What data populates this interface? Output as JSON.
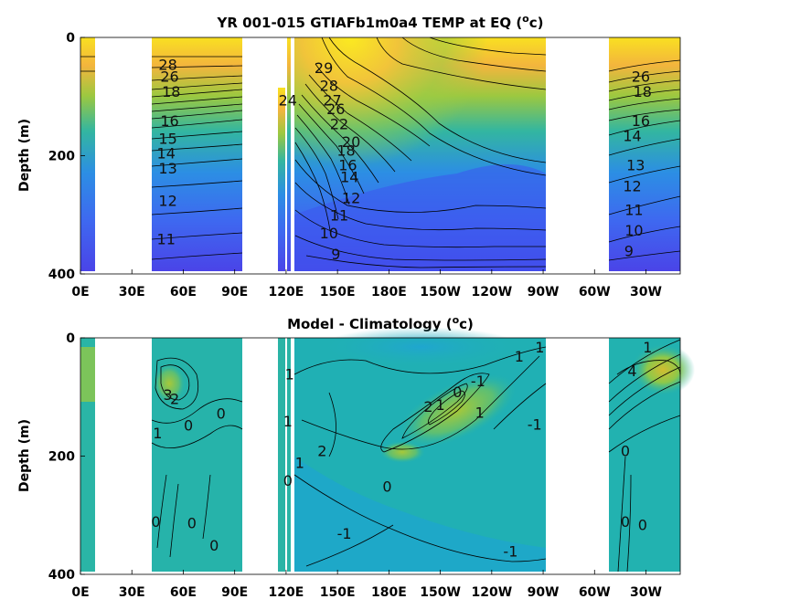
{
  "chart_data": [
    {
      "type": "heatmap",
      "title": "YR 001-015 GTIAFb1m0a4 TEMP at EQ (°c)",
      "ylabel": "Depth (m)",
      "xticks": [
        "0E",
        "30E",
        "60E",
        "90E",
        "120E",
        "150E",
        "180E",
        "150W",
        "120W",
        "90W",
        "60W",
        "30W"
      ],
      "yticks": [
        "0",
        "200",
        "400"
      ],
      "ylim": [
        0,
        400
      ],
      "contour_labels": [
        {
          "text": "28",
          "lon": 51,
          "depth": 55
        },
        {
          "text": "26",
          "lon": 52,
          "depth": 75
        },
        {
          "text": "18",
          "lon": 53,
          "depth": 100
        },
        {
          "text": "16",
          "lon": 52,
          "depth": 150
        },
        {
          "text": "15",
          "lon": 51,
          "depth": 180
        },
        {
          "text": "14",
          "lon": 50,
          "depth": 205
        },
        {
          "text": "13",
          "lon": 51,
          "depth": 230
        },
        {
          "text": "12",
          "lon": 51,
          "depth": 285
        },
        {
          "text": "11",
          "lon": 50,
          "depth": 350
        },
        {
          "text": "24",
          "lon": 121,
          "depth": 115
        },
        {
          "text": "29",
          "lon": 142,
          "depth": 60
        },
        {
          "text": "28",
          "lon": 145,
          "depth": 90
        },
        {
          "text": "27",
          "lon": 147,
          "depth": 115
        },
        {
          "text": "26",
          "lon": 149,
          "depth": 130
        },
        {
          "text": "22",
          "lon": 151,
          "depth": 155
        },
        {
          "text": "20",
          "lon": 158,
          "depth": 185
        },
        {
          "text": "18",
          "lon": 155,
          "depth": 200
        },
        {
          "text": "16",
          "lon": 156,
          "depth": 225
        },
        {
          "text": "14",
          "lon": 157,
          "depth": 245
        },
        {
          "text": "12",
          "lon": 158,
          "depth": 280
        },
        {
          "text": "11",
          "lon": 151,
          "depth": 310
        },
        {
          "text": "10",
          "lon": 145,
          "depth": 340
        },
        {
          "text": "9",
          "lon": 149,
          "depth": 375
        },
        {
          "text": "26",
          "lon": 327,
          "depth": 75
        },
        {
          "text": "18",
          "lon": 328,
          "depth": 100
        },
        {
          "text": "16",
          "lon": 327,
          "depth": 150
        },
        {
          "text": "14",
          "lon": 322,
          "depth": 175
        },
        {
          "text": "13",
          "lon": 324,
          "depth": 225
        },
        {
          "text": "12",
          "lon": 322,
          "depth": 260
        },
        {
          "text": "11",
          "lon": 323,
          "depth": 300
        },
        {
          "text": "10",
          "lon": 323,
          "depth": 335
        },
        {
          "text": "9",
          "lon": 320,
          "depth": 370
        }
      ]
    },
    {
      "type": "heatmap",
      "title": "Model - Climatology (°c)",
      "ylabel": "Depth (m)",
      "xticks": [
        "0E",
        "30E",
        "60E",
        "90E",
        "120E",
        "150E",
        "180E",
        "150W",
        "120W",
        "90W",
        "60W",
        "30W"
      ],
      "yticks": [
        "0",
        "200",
        "400"
      ],
      "ylim": [
        0,
        400
      ],
      "contour_labels": [
        {
          "text": "3",
          "lon": 51,
          "depth": 105
        },
        {
          "text": "2",
          "lon": 55,
          "depth": 112
        },
        {
          "text": "0",
          "lon": 63,
          "depth": 157
        },
        {
          "text": "0",
          "lon": 82,
          "depth": 137
        },
        {
          "text": "1",
          "lon": 45,
          "depth": 170
        },
        {
          "text": "0",
          "lon": 44,
          "depth": 320
        },
        {
          "text": "0",
          "lon": 65,
          "depth": 322
        },
        {
          "text": "0",
          "lon": 78,
          "depth": 360
        },
        {
          "text": "1",
          "lon": 122,
          "depth": 70
        },
        {
          "text": "1",
          "lon": 121,
          "depth": 150
        },
        {
          "text": "0",
          "lon": 121,
          "depth": 250
        },
        {
          "text": "1",
          "lon": 128,
          "depth": 220
        },
        {
          "text": "2",
          "lon": 141,
          "depth": 200
        },
        {
          "text": "0",
          "lon": 179,
          "depth": 260
        },
        {
          "text": "2",
          "lon": 203,
          "depth": 125
        },
        {
          "text": "1",
          "lon": 210,
          "depth": 122
        },
        {
          "text": "0",
          "lon": 220,
          "depth": 100
        },
        {
          "text": "-1",
          "lon": 232,
          "depth": 82
        },
        {
          "text": "1",
          "lon": 233,
          "depth": 135
        },
        {
          "text": "-1",
          "lon": 265,
          "depth": 155
        },
        {
          "text": "1",
          "lon": 256,
          "depth": 40
        },
        {
          "text": "1",
          "lon": 268,
          "depth": 25
        },
        {
          "text": "-1",
          "lon": 154,
          "depth": 340
        },
        {
          "text": "-1",
          "lon": 251,
          "depth": 370
        },
        {
          "text": "1",
          "lon": 331,
          "depth": 25
        },
        {
          "text": "4",
          "lon": 322,
          "depth": 65
        },
        {
          "text": "0",
          "lon": 318,
          "depth": 200
        },
        {
          "text": "0",
          "lon": 318,
          "depth": 320
        },
        {
          "text": "0",
          "lon": 328,
          "depth": 325
        }
      ]
    }
  ]
}
